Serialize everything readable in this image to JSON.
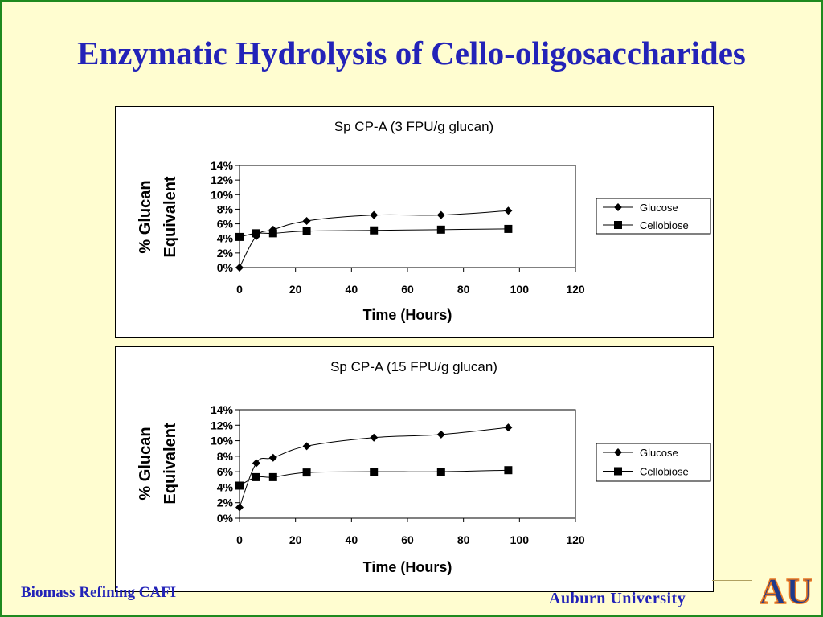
{
  "slide": {
    "title": "Enzymatic Hydrolysis of Cello-oligosaccharides",
    "footer_left": "Biomass Refining CAFI",
    "footer_right": "Auburn University",
    "logo_text": "AU"
  },
  "colors": {
    "border": "#1f8a1f",
    "title": "#2323b8",
    "background": "#fffdd0",
    "series": "#000000"
  },
  "chart_data": [
    {
      "type": "line",
      "title": "Sp CP-A (3 FPU/g glucan)",
      "xlabel": "Time (Hours)",
      "ylabel": "% Glucan Equivalent",
      "xlim": [
        0,
        120
      ],
      "ylim": [
        0,
        0.14
      ],
      "xticks": [
        "0",
        "20",
        "40",
        "60",
        "80",
        "100",
        "120"
      ],
      "yticks": [
        "0%",
        "2%",
        "4%",
        "6%",
        "8%",
        "10%",
        "12%",
        "14%"
      ],
      "legend_position": "right",
      "grid": false,
      "series": [
        {
          "name": "Glucose",
          "marker": "diamond",
          "x": [
            0,
            6,
            12,
            24,
            48,
            72,
            96
          ],
          "y": [
            0.0,
            0.043,
            0.052,
            0.064,
            0.072,
            0.072,
            0.078
          ]
        },
        {
          "name": "Cellobiose",
          "marker": "square",
          "x": [
            0,
            6,
            12,
            24,
            48,
            72,
            96
          ],
          "y": [
            0.042,
            0.047,
            0.047,
            0.05,
            0.051,
            0.052,
            0.053
          ]
        }
      ]
    },
    {
      "type": "line",
      "title": "Sp CP-A (15 FPU/g glucan)",
      "xlabel": "Time (Hours)",
      "ylabel": "% Glucan Equivalent",
      "xlim": [
        0,
        120
      ],
      "ylim": [
        0,
        0.14
      ],
      "xticks": [
        "0",
        "20",
        "40",
        "60",
        "80",
        "100",
        "120"
      ],
      "yticks": [
        "0%",
        "2%",
        "4%",
        "6%",
        "8%",
        "10%",
        "12%",
        "14%"
      ],
      "legend_position": "right",
      "grid": false,
      "series": [
        {
          "name": "Glucose",
          "marker": "diamond",
          "x": [
            0,
            6,
            12,
            24,
            48,
            72,
            96
          ],
          "y": [
            0.014,
            0.071,
            0.078,
            0.093,
            0.104,
            0.108,
            0.117
          ]
        },
        {
          "name": "Cellobiose",
          "marker": "square",
          "x": [
            0,
            6,
            12,
            24,
            48,
            72,
            96
          ],
          "y": [
            0.042,
            0.053,
            0.053,
            0.059,
            0.06,
            0.06,
            0.062
          ]
        }
      ]
    }
  ]
}
